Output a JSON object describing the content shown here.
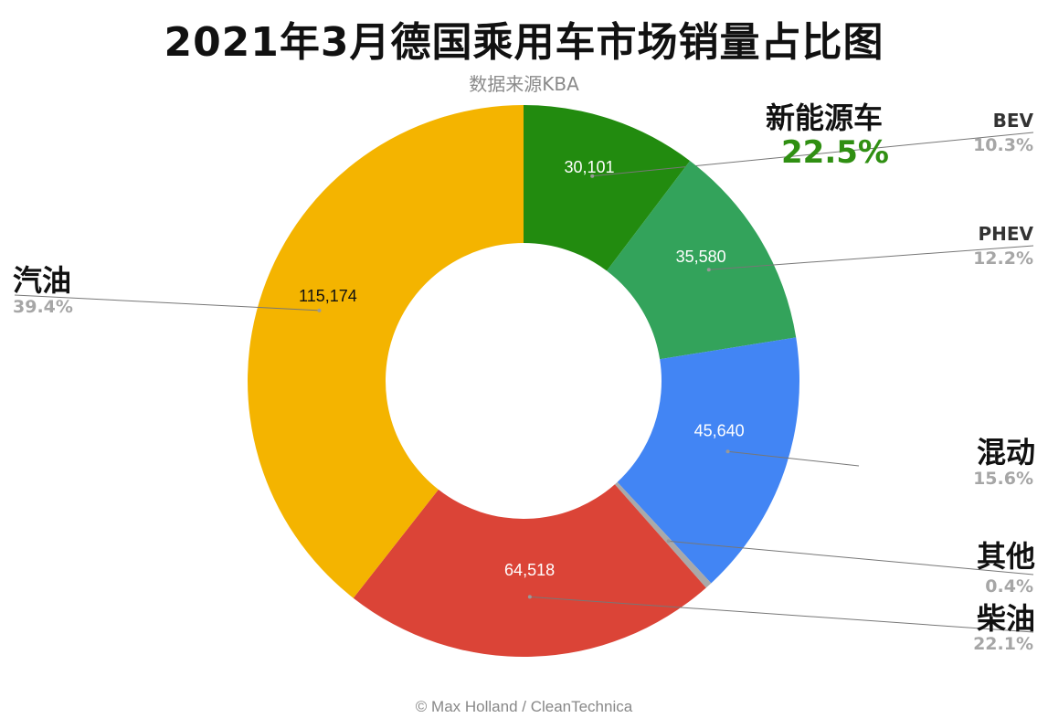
{
  "title": "2021年3月德国乘用车市场销量占比图",
  "subtitle": "数据来源KBA",
  "credit": "© Max Holland / CleanTechnica",
  "group_label": {
    "name": "新能源车",
    "pct": "22.5%",
    "color": "#2f8f12"
  },
  "chart_data": {
    "type": "pie",
    "donut": true,
    "start_angle_deg": 0,
    "direction": "clockwise",
    "slices": [
      {
        "label": "BEV",
        "value": 30101,
        "value_label": "30,101",
        "pct_label": "10.3%",
        "color": "#228b0f",
        "text_color": "#ffffff"
      },
      {
        "label": "PHEV",
        "value": 35580,
        "value_label": "35,580",
        "pct_label": "12.2%",
        "color": "#33a35b",
        "text_color": "#ffffff"
      },
      {
        "label": "混动",
        "value": 45640,
        "value_label": "45,640",
        "pct_label": "15.6%",
        "color": "#4285f4",
        "text_color": "#ffffff"
      },
      {
        "label": "其他",
        "value": 1150,
        "value_label": "",
        "pct_label": "0.4%",
        "color": "#a9a9a9",
        "text_color": "#ffffff"
      },
      {
        "label": "柴油",
        "value": 64518,
        "value_label": "64,518",
        "pct_label": "22.1%",
        "color": "#db4437",
        "text_color": "#ffffff"
      },
      {
        "label": "汽油",
        "value": 115174,
        "value_label": "115,174",
        "pct_label": "39.4%",
        "color": "#f4b400",
        "text_color": "#111111"
      }
    ]
  }
}
